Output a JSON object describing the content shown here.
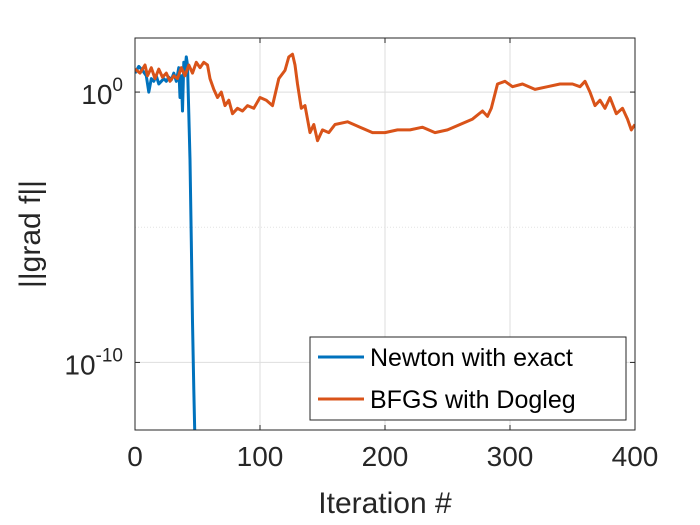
{
  "chart_data": {
    "type": "line",
    "xlabel": "Iteration #",
    "ylabel": "||grad f||",
    "xlim": [
      0,
      400
    ],
    "ylim_log10": [
      -12.5,
      2
    ],
    "yscale": "log",
    "grid": true,
    "legend_placement": "bottom-right",
    "x_ticks": [
      0,
      100,
      200,
      300,
      400
    ],
    "x_tick_labels": [
      "0",
      "100",
      "200",
      "300",
      "400"
    ],
    "y_ticks_log10": [
      -10,
      0
    ],
    "y_tick_bases": [
      "10",
      "10"
    ],
    "y_tick_exponents": [
      "-10",
      "0"
    ],
    "series": [
      {
        "name": "Newton with exact",
        "color": "#0072BD",
        "x": [
          0,
          3,
          6,
          9,
          11,
          13,
          15,
          17,
          19,
          21,
          23,
          25,
          27,
          29,
          31,
          33,
          35,
          36,
          37,
          38,
          39,
          40,
          41,
          42,
          43,
          44,
          45,
          46,
          47,
          48
        ],
        "log10_y": [
          0.7,
          0.95,
          0.8,
          0.6,
          0.0,
          0.5,
          0.4,
          0.6,
          0.3,
          0.4,
          0.5,
          0.4,
          0.55,
          0.45,
          0.7,
          0.4,
          0.9,
          -0.2,
          0.6,
          -0.7,
          1.1,
          0.8,
          1.3,
          1.0,
          -0.8,
          -2.5,
          -5.5,
          -8.5,
          -11.0,
          -13.0
        ]
      },
      {
        "name": "BFGS with Dogleg",
        "color": "#D95319",
        "x": [
          0,
          4,
          8,
          10,
          13,
          16,
          19,
          22,
          25,
          28,
          31,
          34,
          37,
          40,
          43,
          46,
          49,
          52,
          55,
          58,
          60,
          63,
          66,
          69,
          72,
          75,
          78,
          82,
          86,
          90,
          95,
          100,
          105,
          110,
          115,
          120,
          123,
          126,
          128,
          130,
          133,
          136,
          140,
          143,
          146,
          150,
          155,
          160,
          170,
          180,
          190,
          200,
          210,
          220,
          230,
          240,
          250,
          260,
          270,
          278,
          282,
          285,
          290,
          296,
          302,
          310,
          320,
          330,
          340,
          350,
          356,
          360,
          364,
          368,
          372,
          376,
          380,
          385,
          390,
          394,
          397,
          400
        ],
        "log10_y": [
          0.85,
          0.7,
          1.0,
          0.6,
          0.9,
          0.5,
          0.85,
          0.55,
          0.7,
          0.4,
          0.6,
          0.5,
          0.9,
          0.6,
          1.0,
          0.7,
          1.1,
          0.9,
          1.1,
          1.0,
          0.5,
          0.1,
          -0.2,
          0.0,
          -0.5,
          -0.3,
          -0.8,
          -0.6,
          -0.7,
          -0.5,
          -0.6,
          -0.2,
          -0.3,
          -0.5,
          0.5,
          0.8,
          1.3,
          1.4,
          1.0,
          0.3,
          -0.6,
          -0.5,
          -1.5,
          -1.2,
          -1.8,
          -1.4,
          -1.5,
          -1.2,
          -1.1,
          -1.3,
          -1.5,
          -1.5,
          -1.4,
          -1.4,
          -1.3,
          -1.5,
          -1.4,
          -1.2,
          -1.0,
          -0.7,
          -0.9,
          -0.6,
          0.3,
          0.4,
          0.2,
          0.3,
          0.1,
          0.2,
          0.3,
          0.3,
          0.2,
          0.4,
          0.0,
          -0.5,
          -0.3,
          -0.6,
          -0.2,
          -0.8,
          -0.6,
          -1.0,
          -1.4,
          -1.2
        ]
      }
    ]
  }
}
